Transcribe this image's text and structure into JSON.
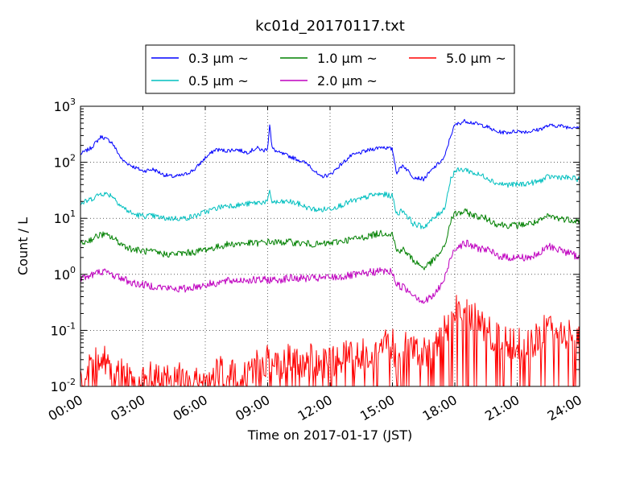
{
  "chart_data": {
    "type": "line",
    "title": "kc01d_20170117.txt",
    "xlabel": "Time on 2017-01-17 (JST)",
    "ylabel": "Count / L",
    "x_ticks": [
      "00:00",
      "03:00",
      "06:00",
      "09:00",
      "12:00",
      "15:00",
      "18:00",
      "21:00",
      "24:00"
    ],
    "x_range_hours": [
      0,
      24
    ],
    "y_scale": "log",
    "y_ticks": [
      {
        "base": "10",
        "exp": "-2"
      },
      {
        "base": "10",
        "exp": "-1"
      },
      {
        "base": "10",
        "exp": "0"
      },
      {
        "base": "10",
        "exp": "1"
      },
      {
        "base": "10",
        "exp": "2"
      },
      {
        "base": "10",
        "exp": "3"
      }
    ],
    "ylim": [
      0.01,
      1000
    ],
    "grid": true,
    "legend_position": "top-center",
    "series": [
      {
        "name": "0.3 μm ~",
        "color": "#0000ff",
        "points": [
          [
            0,
            140
          ],
          [
            0.5,
            180
          ],
          [
            1,
            290
          ],
          [
            1.5,
            230
          ],
          [
            2,
            110
          ],
          [
            2.5,
            85
          ],
          [
            3,
            70
          ],
          [
            3.5,
            75
          ],
          [
            4,
            60
          ],
          [
            4.5,
            55
          ],
          [
            5,
            60
          ],
          [
            5.5,
            75
          ],
          [
            6,
            120
          ],
          [
            6.5,
            170
          ],
          [
            7,
            160
          ],
          [
            7.5,
            170
          ],
          [
            8,
            150
          ],
          [
            8.5,
            180
          ],
          [
            8.8,
            160
          ],
          [
            9.0,
            180
          ],
          [
            9.1,
            500
          ],
          [
            9.2,
            180
          ],
          [
            9.5,
            150
          ],
          [
            10,
            130
          ],
          [
            10.5,
            110
          ],
          [
            11,
            90
          ],
          [
            11.5,
            55
          ],
          [
            12,
            60
          ],
          [
            12.5,
            90
          ],
          [
            13,
            130
          ],
          [
            13.5,
            150
          ],
          [
            14,
            170
          ],
          [
            14.5,
            190
          ],
          [
            15,
            170
          ],
          [
            15.2,
            65
          ],
          [
            15.5,
            90
          ],
          [
            16,
            55
          ],
          [
            16.5,
            50
          ],
          [
            17,
            80
          ],
          [
            17.5,
            120
          ],
          [
            17.8,
            300
          ],
          [
            18,
            460
          ],
          [
            18.5,
            550
          ],
          [
            19,
            490
          ],
          [
            19.5,
            440
          ],
          [
            20,
            350
          ],
          [
            20.5,
            340
          ],
          [
            21,
            360
          ],
          [
            21.5,
            350
          ],
          [
            22,
            380
          ],
          [
            22.5,
            450
          ],
          [
            23,
            450
          ],
          [
            23.5,
            420
          ],
          [
            24,
            440
          ]
        ]
      },
      {
        "name": "0.5 μm ~",
        "color": "#00bfbf",
        "points": [
          [
            0,
            18
          ],
          [
            0.5,
            22
          ],
          [
            1,
            28
          ],
          [
            1.5,
            26
          ],
          [
            2,
            16
          ],
          [
            2.5,
            12
          ],
          [
            3,
            11
          ],
          [
            3.5,
            11
          ],
          [
            4,
            10
          ],
          [
            4.5,
            10
          ],
          [
            5,
            10
          ],
          [
            5.5,
            11
          ],
          [
            6,
            13
          ],
          [
            6.5,
            15
          ],
          [
            7,
            17
          ],
          [
            7.5,
            17
          ],
          [
            8,
            18
          ],
          [
            8.5,
            19
          ],
          [
            9.0,
            20
          ],
          [
            9.1,
            30
          ],
          [
            9.2,
            20
          ],
          [
            9.5,
            19
          ],
          [
            10,
            20
          ],
          [
            10.5,
            18
          ],
          [
            11,
            15
          ],
          [
            11.5,
            14
          ],
          [
            12,
            15
          ],
          [
            12.5,
            17
          ],
          [
            13,
            20
          ],
          [
            13.5,
            22
          ],
          [
            14,
            26
          ],
          [
            14.5,
            27
          ],
          [
            15,
            25
          ],
          [
            15.2,
            12
          ],
          [
            15.5,
            14
          ],
          [
            16,
            8
          ],
          [
            16.5,
            7
          ],
          [
            17,
            10
          ],
          [
            17.5,
            15
          ],
          [
            17.8,
            50
          ],
          [
            18,
            70
          ],
          [
            18.5,
            75
          ],
          [
            19,
            62
          ],
          [
            19.5,
            55
          ],
          [
            20,
            42
          ],
          [
            20.5,
            40
          ],
          [
            21,
            40
          ],
          [
            21.5,
            42
          ],
          [
            22,
            45
          ],
          [
            22.5,
            55
          ],
          [
            23,
            55
          ],
          [
            23.5,
            52
          ],
          [
            24,
            50
          ]
        ]
      },
      {
        "name": "1.0 μm ~",
        "color": "#008000",
        "points": [
          [
            0,
            3.5
          ],
          [
            0.5,
            4.2
          ],
          [
            1,
            5.2
          ],
          [
            1.5,
            4.6
          ],
          [
            2,
            3.4
          ],
          [
            2.5,
            2.8
          ],
          [
            3,
            2.6
          ],
          [
            3.5,
            2.5
          ],
          [
            4,
            2.3
          ],
          [
            4.5,
            2.3
          ],
          [
            5,
            2.4
          ],
          [
            5.5,
            2.5
          ],
          [
            6,
            2.8
          ],
          [
            6.5,
            3.0
          ],
          [
            7,
            3.4
          ],
          [
            7.5,
            3.5
          ],
          [
            8,
            3.6
          ],
          [
            8.5,
            3.6
          ],
          [
            9,
            3.8
          ],
          [
            9.5,
            3.7
          ],
          [
            10,
            3.8
          ],
          [
            10.5,
            3.6
          ],
          [
            11,
            3.5
          ],
          [
            11.5,
            3.4
          ],
          [
            12,
            3.6
          ],
          [
            12.5,
            3.9
          ],
          [
            13,
            4.2
          ],
          [
            13.5,
            4.5
          ],
          [
            14,
            5.0
          ],
          [
            14.5,
            5.5
          ],
          [
            15,
            5.3
          ],
          [
            15.2,
            2.6
          ],
          [
            15.5,
            2.8
          ],
          [
            16,
            1.8
          ],
          [
            16.5,
            1.3
          ],
          [
            17,
            1.8
          ],
          [
            17.5,
            3.0
          ],
          [
            17.8,
            9
          ],
          [
            18,
            12
          ],
          [
            18.5,
            13
          ],
          [
            19,
            11
          ],
          [
            19.5,
            10
          ],
          [
            20,
            8
          ],
          [
            20.5,
            7.5
          ],
          [
            21,
            7.5
          ],
          [
            21.5,
            8
          ],
          [
            22,
            8.5
          ],
          [
            22.5,
            11
          ],
          [
            23,
            10
          ],
          [
            23.5,
            9.5
          ],
          [
            24,
            9
          ]
        ]
      },
      {
        "name": "2.0 μm ~",
        "color": "#bf00bf",
        "points": [
          [
            0,
            0.85
          ],
          [
            0.5,
            0.95
          ],
          [
            1,
            1.15
          ],
          [
            1.5,
            1.0
          ],
          [
            2,
            0.85
          ],
          [
            2.5,
            0.7
          ],
          [
            3,
            0.65
          ],
          [
            3.5,
            0.62
          ],
          [
            4,
            0.58
          ],
          [
            4.5,
            0.55
          ],
          [
            5,
            0.55
          ],
          [
            5.5,
            0.6
          ],
          [
            6,
            0.65
          ],
          [
            6.5,
            0.7
          ],
          [
            7,
            0.75
          ],
          [
            7.5,
            0.78
          ],
          [
            8,
            0.8
          ],
          [
            8.5,
            0.78
          ],
          [
            9,
            0.8
          ],
          [
            9.5,
            0.8
          ],
          [
            10,
            0.85
          ],
          [
            10.5,
            0.85
          ],
          [
            11,
            0.85
          ],
          [
            11.5,
            0.85
          ],
          [
            12,
            0.88
          ],
          [
            12.5,
            0.9
          ],
          [
            13,
            0.95
          ],
          [
            13.5,
            1.0
          ],
          [
            14,
            1.1
          ],
          [
            14.5,
            1.15
          ],
          [
            15,
            1.1
          ],
          [
            15.2,
            0.65
          ],
          [
            15.5,
            0.6
          ],
          [
            16,
            0.45
          ],
          [
            16.5,
            0.32
          ],
          [
            17,
            0.42
          ],
          [
            17.5,
            0.8
          ],
          [
            17.8,
            2.0
          ],
          [
            18,
            3.0
          ],
          [
            18.5,
            3.6
          ],
          [
            19,
            3.0
          ],
          [
            19.5,
            2.8
          ],
          [
            20,
            2.2
          ],
          [
            20.5,
            2.0
          ],
          [
            21,
            2.0
          ],
          [
            21.5,
            2.0
          ],
          [
            22,
            2.2
          ],
          [
            22.5,
            3.2
          ],
          [
            23,
            2.8
          ],
          [
            23.5,
            2.4
          ],
          [
            24,
            2.0
          ]
        ]
      },
      {
        "name": "5.0 μm ~",
        "color": "#ff0000",
        "points": [
          [
            0,
            0.012
          ],
          [
            0.5,
            0.02
          ],
          [
            1,
            0.04
          ],
          [
            1.5,
            0.015
          ],
          [
            2,
            0.02
          ],
          [
            2.5,
            0.012
          ],
          [
            3,
            0.012
          ],
          [
            3.5,
            0.015
          ],
          [
            4,
            0.012
          ],
          [
            4.5,
            0.015
          ],
          [
            5,
            0.012
          ],
          [
            5.5,
            0.012
          ],
          [
            6,
            0.012
          ],
          [
            6.5,
            0.02
          ],
          [
            7,
            0.015
          ],
          [
            7.5,
            0.015
          ],
          [
            8,
            0.018
          ],
          [
            8.5,
            0.025
          ],
          [
            9,
            0.03
          ],
          [
            9.5,
            0.02
          ],
          [
            10,
            0.03
          ],
          [
            10.5,
            0.025
          ],
          [
            11,
            0.03
          ],
          [
            11.5,
            0.025
          ],
          [
            12,
            0.025
          ],
          [
            12.5,
            0.035
          ],
          [
            13,
            0.035
          ],
          [
            13.5,
            0.04
          ],
          [
            14,
            0.04
          ],
          [
            14.5,
            0.05
          ],
          [
            15,
            0.06
          ],
          [
            15.2,
            0.025
          ],
          [
            15.5,
            0.05
          ],
          [
            16,
            0.04
          ],
          [
            16.5,
            0.04
          ],
          [
            17,
            0.05
          ],
          [
            17.5,
            0.1
          ],
          [
            17.8,
            0.15
          ],
          [
            18,
            0.22
          ],
          [
            18.5,
            0.25
          ],
          [
            19,
            0.15
          ],
          [
            19.5,
            0.1
          ],
          [
            20,
            0.07
          ],
          [
            20.5,
            0.06
          ],
          [
            21,
            0.06
          ],
          [
            21.5,
            0.05
          ],
          [
            22,
            0.07
          ],
          [
            22.5,
            0.12
          ],
          [
            23,
            0.1
          ],
          [
            23.5,
            0.09
          ],
          [
            24,
            0.07
          ]
        ]
      }
    ]
  }
}
